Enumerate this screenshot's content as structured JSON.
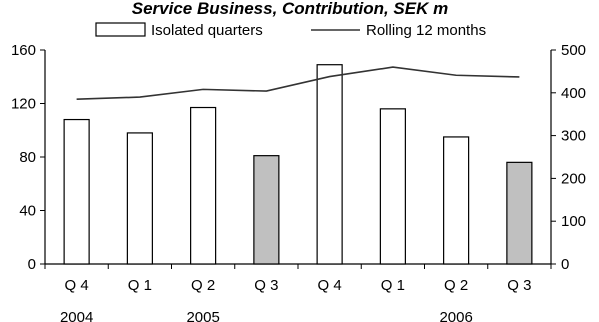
{
  "chart_data": {
    "type": "bar",
    "title": "Service Business, Contribution, SEK m",
    "categories": [
      "Q 4",
      "Q 1",
      "Q 2",
      "Q 3",
      "Q 4",
      "Q 1",
      "Q 2",
      "Q 3"
    ],
    "years": [
      {
        "label": "2004",
        "under_index": 0
      },
      {
        "label": "2005",
        "under_index": 2
      },
      {
        "label": "2006",
        "under_index": 6
      }
    ],
    "series": [
      {
        "name": "Isolated quarters",
        "type": "bar",
        "axis": "left",
        "values": [
          108,
          98,
          117,
          81,
          149,
          116,
          95,
          76
        ],
        "highlight_indices": [
          3,
          7
        ]
      },
      {
        "name": "Rolling 12 months",
        "type": "line",
        "axis": "right",
        "values": [
          385,
          390,
          408,
          404,
          438,
          460,
          441,
          437
        ]
      }
    ],
    "y_left": {
      "min": 0,
      "max": 160,
      "ticks": [
        0,
        40,
        80,
        120,
        160
      ]
    },
    "y_right": {
      "min": 0,
      "max": 500,
      "ticks": [
        0,
        100,
        200,
        300,
        400,
        500
      ]
    },
    "grid": false,
    "legend_position": "top",
    "colors": {
      "bar_fill": "#ffffff",
      "bar_highlight": "#c0c0c0",
      "stroke": "#000000",
      "line": "#333333"
    }
  }
}
